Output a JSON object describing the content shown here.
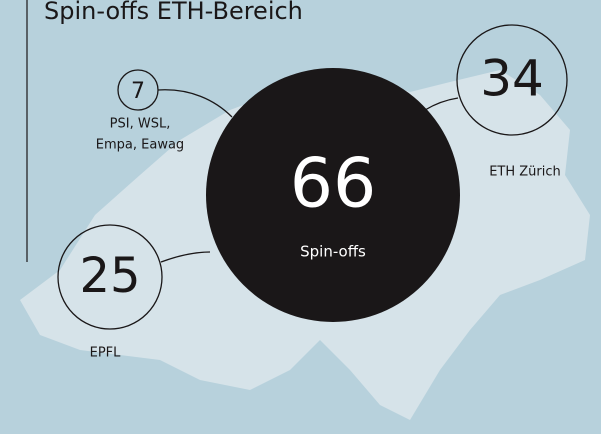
{
  "title": "Spin-offs ETH-Bereich",
  "center": {
    "value": "66",
    "label": "Spin-offs"
  },
  "nodes": [
    {
      "value": "7",
      "label_lines": [
        "PSI, WSL,",
        "Empa, Eawag"
      ]
    },
    {
      "value": "34",
      "label_lines": [
        "ETH Zürich"
      ]
    },
    {
      "value": "25",
      "label_lines": [
        "EPFL"
      ]
    }
  ]
}
